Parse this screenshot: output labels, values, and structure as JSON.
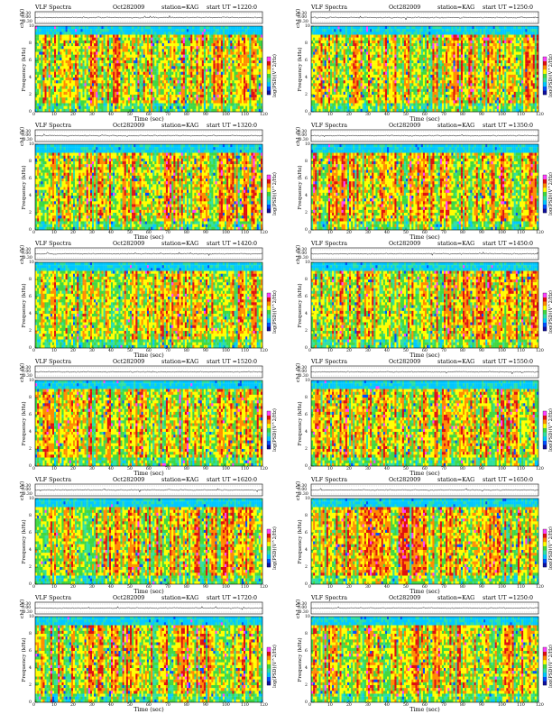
{
  "chart_data": {
    "type": "heatmap",
    "common": {
      "title": "VLF Spectra",
      "date": "Oct282009",
      "station": "station=KAG",
      "start_prefix": "start  UT =",
      "channel_label": "ch1 (V)",
      "freq_label": "Frequency (kHz)",
      "cbar_label": "log(PSD)(V^2/Hz)",
      "xlabel": "Time (sec)",
      "x_ticks": [
        0,
        10,
        20,
        30,
        40,
        50,
        60,
        70,
        80,
        90,
        100,
        110,
        120
      ],
      "xlim": [
        0,
        120
      ],
      "freq_ticks": [
        0,
        2,
        4,
        6,
        8,
        10
      ],
      "ylim_freq": [
        0,
        10
      ],
      "ch_ticks": [
        "0.30",
        "0.00",
        "-0.30"
      ],
      "ylim_ch": [
        -0.3,
        0.3
      ]
    },
    "panels": [
      {
        "start_ut": "1220:0",
        "seed": 11
      },
      {
        "start_ut": "1250:0",
        "seed": 23
      },
      {
        "start_ut": "1320:0",
        "seed": 37
      },
      {
        "start_ut": "1350:0",
        "seed": 41
      },
      {
        "start_ut": "1420:0",
        "seed": 53
      },
      {
        "start_ut": "1450:0",
        "seed": 67
      },
      {
        "start_ut": "1520:0",
        "seed": 71
      },
      {
        "start_ut": "1550:0",
        "seed": 89
      },
      {
        "start_ut": "1620:0",
        "seed": 97
      },
      {
        "start_ut": "1650:0",
        "seed": 103
      },
      {
        "start_ut": "1720:0",
        "seed": 113
      },
      {
        "start_ut": "1250:0",
        "seed": 127
      }
    ],
    "colormap": [
      "#1010a0",
      "#0050ff",
      "#00c8ff",
      "#30e0a0",
      "#40d840",
      "#ffff00",
      "#ff8c00",
      "#e01010",
      "#ff40ff"
    ]
  }
}
